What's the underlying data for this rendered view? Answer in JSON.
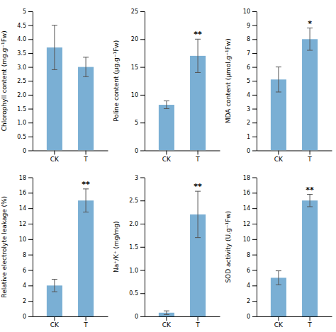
{
  "chart_data": [
    {
      "type": "bar",
      "ylabel": "Chlorophyll content (mg.g⁻¹Fw)",
      "categories": [
        "CK",
        "T"
      ],
      "values": [
        3.7,
        3.0
      ],
      "errors": [
        0.8,
        0.35
      ],
      "color": "#7aafd4",
      "ylim": [
        0,
        5
      ],
      "yticks": [
        0,
        0.5,
        {
          "value": 1.0,
          "label": "1.0"
        },
        1.5,
        {
          "value": 2.0,
          "label": "2.0"
        },
        2.5,
        {
          "value": 3.0,
          "label": "3.0"
        },
        3.5,
        {
          "value": 4.0,
          "label": "4.0"
        },
        4.5,
        5
      ]
    },
    {
      "type": "bar",
      "ylabel": "Poline content (μg.g⁻¹Fw)",
      "categories": [
        "CK",
        "T"
      ],
      "values": [
        8.2,
        17.0
      ],
      "errors": [
        0.7,
        3.0
      ],
      "color": "#7aafd4",
      "ylim": [
        0,
        25
      ],
      "yticks": [
        0,
        5,
        10,
        15,
        20,
        25
      ],
      "annotations": [
        {
          "text": "**",
          "x": "T"
        }
      ]
    },
    {
      "type": "bar",
      "ylabel": "MDA content (μmol.g⁻¹Fw)",
      "categories": [
        "CK",
        "T"
      ],
      "values": [
        5.1,
        8.0
      ],
      "errors": [
        0.9,
        0.8
      ],
      "color": "#7aafd4",
      "ylim": [
        0,
        10
      ],
      "yticks": [
        0,
        1,
        2,
        3,
        4,
        5,
        6,
        7,
        8,
        9,
        10
      ],
      "annotations": [
        {
          "text": "*",
          "x": "T"
        }
      ]
    },
    {
      "type": "bar",
      "ylabel": "Relative electrolyte leakage (%)",
      "categories": [
        "CK",
        "T"
      ],
      "values": [
        4.0,
        15.0
      ],
      "errors": [
        0.8,
        1.5
      ],
      "color": "#7aafd4",
      "ylim": [
        0,
        18
      ],
      "yticks": [
        0,
        2,
        4,
        6,
        8,
        10,
        12,
        14,
        16,
        18
      ],
      "annotations": [
        {
          "text": "**",
          "x": "T"
        }
      ]
    },
    {
      "type": "bar",
      "ylabel": "Na⁺/K⁺ (mg/mg)",
      "categories": [
        "CK",
        "T"
      ],
      "values": [
        0.08,
        2.2
      ],
      "errors": [
        0.04,
        0.5
      ],
      "color": "#7aafd4",
      "ylim": [
        0,
        3
      ],
      "yticks": [
        0,
        0.5,
        {
          "value": 1.0,
          "label": "1.0"
        },
        1.5,
        {
          "value": 2.0,
          "label": "2.0"
        },
        2.5,
        3
      ],
      "annotations": [
        {
          "text": "**",
          "x": "T"
        }
      ]
    },
    {
      "type": "bar",
      "ylabel": "SOD activity (U.g⁻¹Fw)",
      "categories": [
        "CK",
        "T"
      ],
      "values": [
        5.0,
        15.0
      ],
      "errors": [
        0.9,
        0.8
      ],
      "color": "#7aafd4",
      "ylim": [
        0,
        18
      ],
      "yticks": [
        0,
        2,
        4,
        6,
        8,
        10,
        12,
        14,
        16,
        18
      ],
      "annotations": [
        {
          "text": "**",
          "x": "T"
        }
      ]
    }
  ]
}
